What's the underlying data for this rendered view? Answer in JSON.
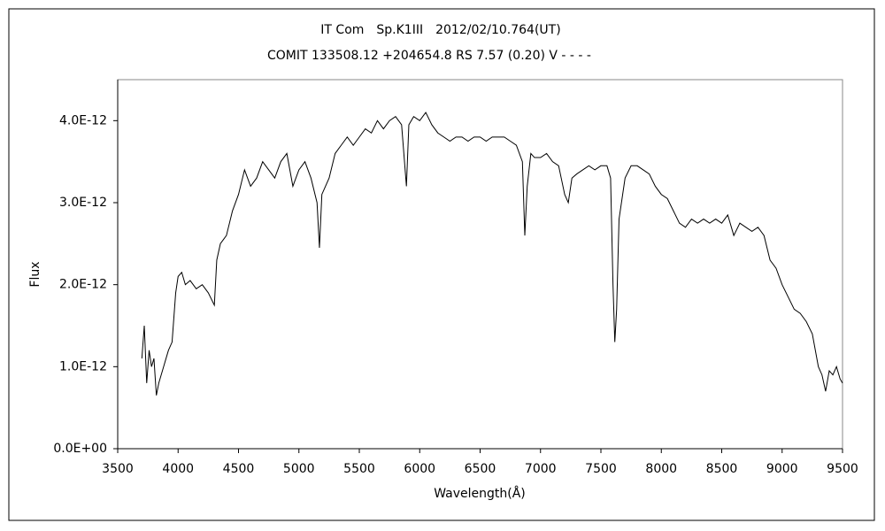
{
  "chart_data": {
    "type": "line",
    "title": "IT Com　Sp.K1III　2012/02/10.764(UT)",
    "subtitle": "COMIT 133508.12 +204654.8 RS 7.57 (0.20) V - - - -",
    "xlabel": "Wavelength(Å)",
    "ylabel": "Flux",
    "xlim": [
      3500,
      9500
    ],
    "xticks": [
      3500,
      4000,
      4500,
      5000,
      5500,
      6000,
      6500,
      7000,
      7500,
      8000,
      8500,
      9000,
      9500
    ],
    "ylim": [
      0,
      4.5e-12
    ],
    "yticks": [
      {
        "value": 0,
        "label": "0.0E+00"
      },
      {
        "value": 1e-12,
        "label": "1.0E-12"
      },
      {
        "value": 2e-12,
        "label": "2.0E-12"
      },
      {
        "value": 3e-12,
        "label": "3.0E-12"
      },
      {
        "value": 4e-12,
        "label": "4.0E-12"
      }
    ],
    "color": "#000000",
    "x": [
      3700,
      3720,
      3740,
      3760,
      3780,
      3800,
      3820,
      3840,
      3860,
      3880,
      3900,
      3920,
      3950,
      3980,
      4000,
      4030,
      4060,
      4100,
      4150,
      4200,
      4250,
      4300,
      4320,
      4350,
      4400,
      4450,
      4500,
      4550,
      4600,
      4650,
      4700,
      4750,
      4800,
      4850,
      4900,
      4950,
      5000,
      5050,
      5100,
      5150,
      5170,
      5190,
      5250,
      5300,
      5350,
      5400,
      5450,
      5500,
      5550,
      5600,
      5650,
      5700,
      5750,
      5800,
      5850,
      5890,
      5910,
      5950,
      6000,
      6050,
      6100,
      6150,
      6200,
      6250,
      6300,
      6350,
      6400,
      6450,
      6500,
      6550,
      6600,
      6650,
      6700,
      6750,
      6800,
      6850,
      6870,
      6890,
      6920,
      6950,
      7000,
      7050,
      7100,
      7150,
      7200,
      7230,
      7260,
      7300,
      7350,
      7400,
      7450,
      7500,
      7550,
      7580,
      7600,
      7615,
      7630,
      7650,
      7700,
      7750,
      7800,
      7850,
      7900,
      7950,
      8000,
      8050,
      8100,
      8150,
      8200,
      8250,
      8300,
      8350,
      8400,
      8450,
      8500,
      8550,
      8600,
      8650,
      8700,
      8750,
      8800,
      8850,
      8900,
      8950,
      9000,
      9050,
      9100,
      9150,
      9200,
      9250,
      9300,
      9330,
      9360,
      9390,
      9420,
      9450,
      9480,
      9500
    ],
    "values": [
      1.1e-12,
      1.5e-12,
      8e-13,
      1.2e-12,
      1e-12,
      1.1e-12,
      6.5e-13,
      8e-13,
      9e-13,
      1e-12,
      1.1e-12,
      1.2e-12,
      1.3e-12,
      1.9e-12,
      2.1e-12,
      2.15e-12,
      2e-12,
      2.05e-12,
      1.95e-12,
      2e-12,
      1.9e-12,
      1.75e-12,
      2.3e-12,
      2.5e-12,
      2.6e-12,
      2.9e-12,
      3.1e-12,
      3.4e-12,
      3.2e-12,
      3.3e-12,
      3.5e-12,
      3.4e-12,
      3.3e-12,
      3.5e-12,
      3.6e-12,
      3.2e-12,
      3.4e-12,
      3.5e-12,
      3.3e-12,
      3e-12,
      2.45e-12,
      3.1e-12,
      3.3e-12,
      3.6e-12,
      3.7e-12,
      3.8e-12,
      3.7e-12,
      3.8e-12,
      3.9e-12,
      3.85e-12,
      4e-12,
      3.9e-12,
      4e-12,
      4.05e-12,
      3.95e-12,
      3.2e-12,
      3.95e-12,
      4.05e-12,
      4e-12,
      4.1e-12,
      3.95e-12,
      3.85e-12,
      3.8e-12,
      3.75e-12,
      3.8e-12,
      3.8e-12,
      3.75e-12,
      3.8e-12,
      3.8e-12,
      3.75e-12,
      3.8e-12,
      3.8e-12,
      3.8e-12,
      3.75e-12,
      3.7e-12,
      3.5e-12,
      2.6e-12,
      3.2e-12,
      3.6e-12,
      3.55e-12,
      3.55e-12,
      3.6e-12,
      3.5e-12,
      3.45e-12,
      3.1e-12,
      3e-12,
      3.3e-12,
      3.35e-12,
      3.4e-12,
      3.45e-12,
      3.4e-12,
      3.45e-12,
      3.45e-12,
      3.3e-12,
      2e-12,
      1.3e-12,
      1.7e-12,
      2.8e-12,
      3.3e-12,
      3.45e-12,
      3.45e-12,
      3.4e-12,
      3.35e-12,
      3.2e-12,
      3.1e-12,
      3.05e-12,
      2.9e-12,
      2.75e-12,
      2.7e-12,
      2.8e-12,
      2.75e-12,
      2.8e-12,
      2.75e-12,
      2.8e-12,
      2.75e-12,
      2.85e-12,
      2.6e-12,
      2.75e-12,
      2.7e-12,
      2.65e-12,
      2.7e-12,
      2.6e-12,
      2.3e-12,
      2.2e-12,
      2e-12,
      1.85e-12,
      1.7e-12,
      1.65e-12,
      1.55e-12,
      1.4e-12,
      1e-12,
      9e-13,
      7e-13,
      9.5e-13,
      9e-13,
      1e-12,
      8.5e-13,
      8e-13
    ]
  }
}
